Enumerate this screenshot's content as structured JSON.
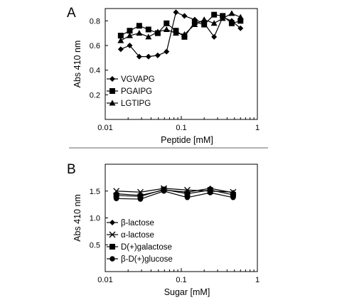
{
  "chart_data": [
    {
      "type": "line",
      "panel_letter": "A",
      "title": "",
      "xlabel": "Peptide [mM]",
      "ylabel": "Abs 410 nm",
      "xscale": "log",
      "xlim": [
        0.01,
        1
      ],
      "ylim": [
        0,
        0.9
      ],
      "xticks": [
        0.01,
        0.1,
        1
      ],
      "xtick_labels": [
        "0.01",
        "0.1",
        "1"
      ],
      "yticks": [
        0.2,
        0.4,
        0.6,
        0.8
      ],
      "ytick_labels": [
        "0.2",
        "0.4",
        "0.6",
        "0.8"
      ],
      "legend_position": "bottom-left",
      "series": [
        {
          "name": "VGVAPG",
          "marker": "diamond",
          "x": [
            0.016,
            0.021,
            0.028,
            0.037,
            0.049,
            0.064,
            0.085,
            0.11,
            0.15,
            0.2,
            0.27,
            0.35,
            0.46,
            0.6
          ],
          "y": [
            0.57,
            0.6,
            0.51,
            0.51,
            0.52,
            0.55,
            0.87,
            0.84,
            0.81,
            0.78,
            0.67,
            0.83,
            0.8,
            0.74
          ]
        },
        {
          "name": "PGAIPG",
          "marker": "square",
          "x": [
            0.016,
            0.021,
            0.028,
            0.037,
            0.049,
            0.064,
            0.085,
            0.11,
            0.15,
            0.2,
            0.27,
            0.35,
            0.46,
            0.6
          ],
          "y": [
            0.68,
            0.72,
            0.76,
            0.73,
            0.7,
            0.78,
            0.72,
            0.67,
            0.79,
            0.77,
            0.85,
            0.84,
            0.78,
            0.8
          ]
        },
        {
          "name": "LGTIPG",
          "marker": "triangle",
          "x": [
            0.016,
            0.021,
            0.028,
            0.037,
            0.049,
            0.064,
            0.085,
            0.11,
            0.15,
            0.2,
            0.27,
            0.35,
            0.46,
            0.6
          ],
          "y": [
            0.64,
            0.68,
            0.7,
            0.67,
            0.71,
            0.73,
            0.7,
            0.69,
            0.77,
            0.81,
            0.78,
            0.82,
            0.86,
            0.83
          ]
        }
      ]
    },
    {
      "type": "line",
      "panel_letter": "B",
      "title": "",
      "xlabel": "Sugar [mM]",
      "ylabel": "Abs 410 nm",
      "xscale": "log",
      "xlim": [
        0.01,
        1
      ],
      "ylim": [
        0,
        2
      ],
      "xticks": [
        0.01,
        0.1,
        1
      ],
      "xtick_labels": [
        "0.01",
        "0.1",
        "1"
      ],
      "yticks": [
        0.5,
        1.0,
        1.5
      ],
      "ytick_labels": [
        "0.5",
        "1.0",
        "1.5"
      ],
      "legend_position": "bottom-left",
      "series": [
        {
          "name": "β-lactose",
          "marker": "diamond",
          "x": [
            0.014,
            0.029,
            0.059,
            0.12,
            0.24,
            0.48
          ],
          "y": [
            1.45,
            1.42,
            1.52,
            1.48,
            1.55,
            1.47
          ]
        },
        {
          "name": "α-lactose",
          "marker": "x",
          "x": [
            0.014,
            0.029,
            0.059,
            0.12,
            0.24,
            0.48
          ],
          "y": [
            1.5,
            1.48,
            1.55,
            1.52,
            1.5,
            1.48
          ]
        },
        {
          "name": "D(+)galactose",
          "marker": "square",
          "x": [
            0.014,
            0.029,
            0.059,
            0.12,
            0.24,
            0.48
          ],
          "y": [
            1.42,
            1.4,
            1.53,
            1.45,
            1.52,
            1.43
          ]
        },
        {
          "name": "β-D(+)glucose",
          "marker": "circle",
          "x": [
            0.014,
            0.029,
            0.059,
            0.12,
            0.24,
            0.48
          ],
          "y": [
            1.36,
            1.35,
            1.5,
            1.38,
            1.47,
            1.38
          ]
        }
      ]
    }
  ]
}
